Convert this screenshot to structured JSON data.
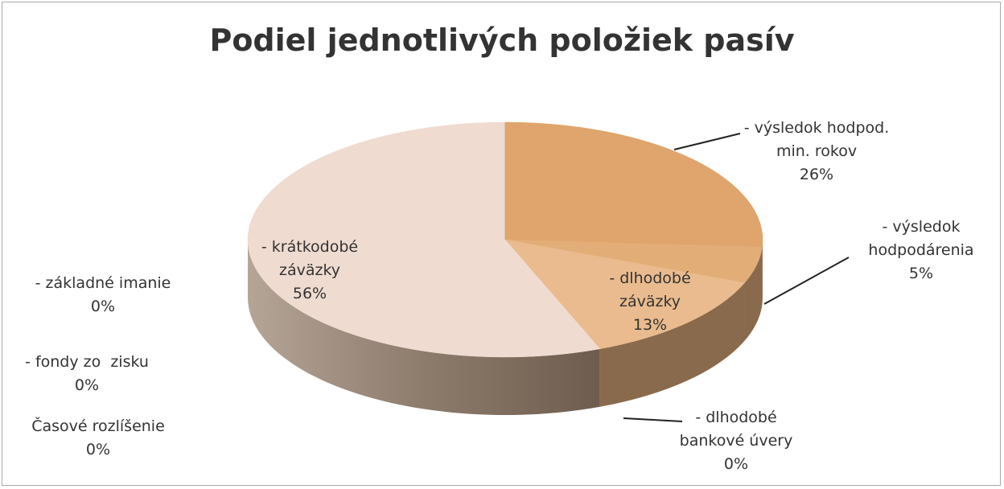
{
  "chart_data": {
    "type": "pie",
    "title": "Podiel jednotlivých položiek pasív",
    "categories": [
      "- výsledok hodpod. min. rokov",
      "- výsledok hodpodárenia",
      "- dlhodobé záväzky",
      "- dlhodobé bankové úvery",
      "- krátkodobé záväzky",
      "- základné imanie",
      "- fondy zo  zisku",
      "Časové rozlíšenie"
    ],
    "values": [
      26,
      5,
      13,
      0,
      56,
      0,
      0,
      0
    ],
    "value_labels": [
      "26%",
      "5%",
      "13%",
      "0%",
      "56%",
      "0%",
      "0%",
      "0%"
    ],
    "colors": [
      "#dfa56c",
      "#e3ad78",
      "#e9bb8e",
      "#d9a27a",
      "#f0dbd0",
      "#c9b7a8",
      "#c4ae9c",
      "#bfa896"
    ]
  }
}
